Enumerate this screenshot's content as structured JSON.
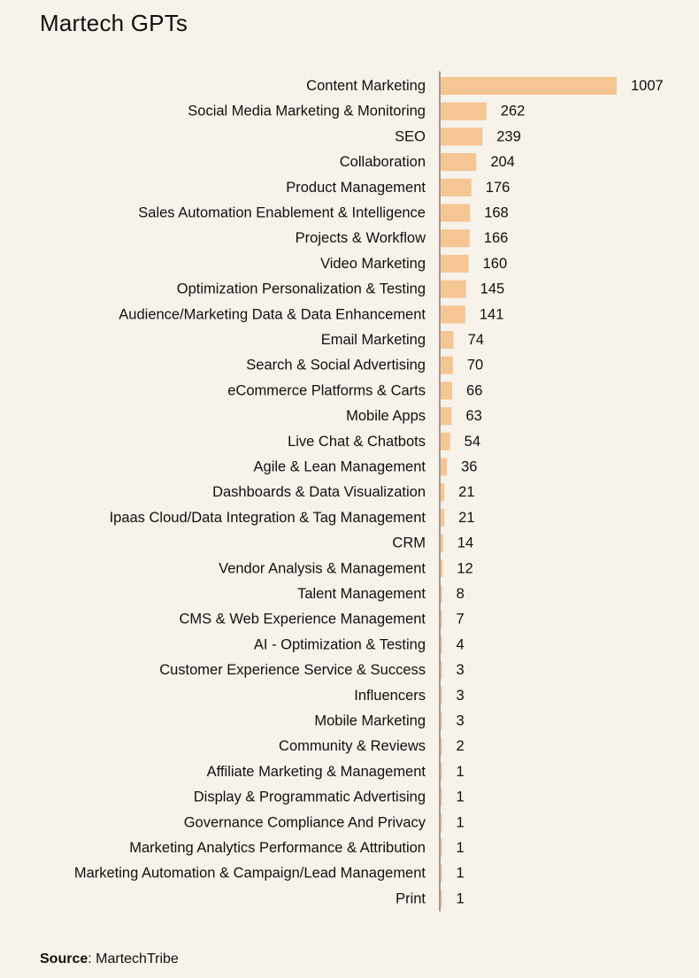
{
  "title": "Martech GPTs",
  "source": {
    "label": "Source",
    "text": ": MartechTribe"
  },
  "chart_data": {
    "type": "bar",
    "orientation": "horizontal",
    "bar_color": "#f5c593",
    "categories": [
      "Content Marketing",
      "Social Media Marketing & Monitoring",
      "SEO",
      "Collaboration",
      "Product Management",
      "Sales Automation Enablement & Intelligence",
      "Projects & Workflow",
      "Video Marketing",
      "Optimization Personalization & Testing",
      "Audience/Marketing Data & Data Enhancement",
      "Email Marketing",
      "Search & Social Advertising",
      "eCommerce Platforms & Carts",
      "Mobile Apps",
      "Live Chat & Chatbots",
      "Agile & Lean Management",
      "Dashboards & Data Visualization",
      "Ipaas Cloud/Data Integration & Tag Management",
      "CRM",
      "Vendor Analysis & Management",
      "Talent Management",
      "CMS & Web Experience Management",
      "AI - Optimization & Testing",
      "Customer Experience Service & Success",
      "Influencers",
      "Mobile Marketing",
      "Community & Reviews",
      "Affiliate Marketing & Management",
      "Display & Programmatic Advertising",
      "Governance Compliance And Privacy",
      "Marketing Analytics Performance & Attribution",
      "Marketing Automation & Campaign/Lead Management",
      "Print"
    ],
    "values": [
      1007,
      262,
      239,
      204,
      176,
      168,
      166,
      160,
      145,
      141,
      74,
      70,
      66,
      63,
      54,
      36,
      21,
      21,
      14,
      12,
      8,
      7,
      4,
      3,
      3,
      3,
      2,
      1,
      1,
      1,
      1,
      1,
      1
    ],
    "xlim": [
      0,
      1007
    ],
    "grid": false,
    "legend": "none"
  }
}
